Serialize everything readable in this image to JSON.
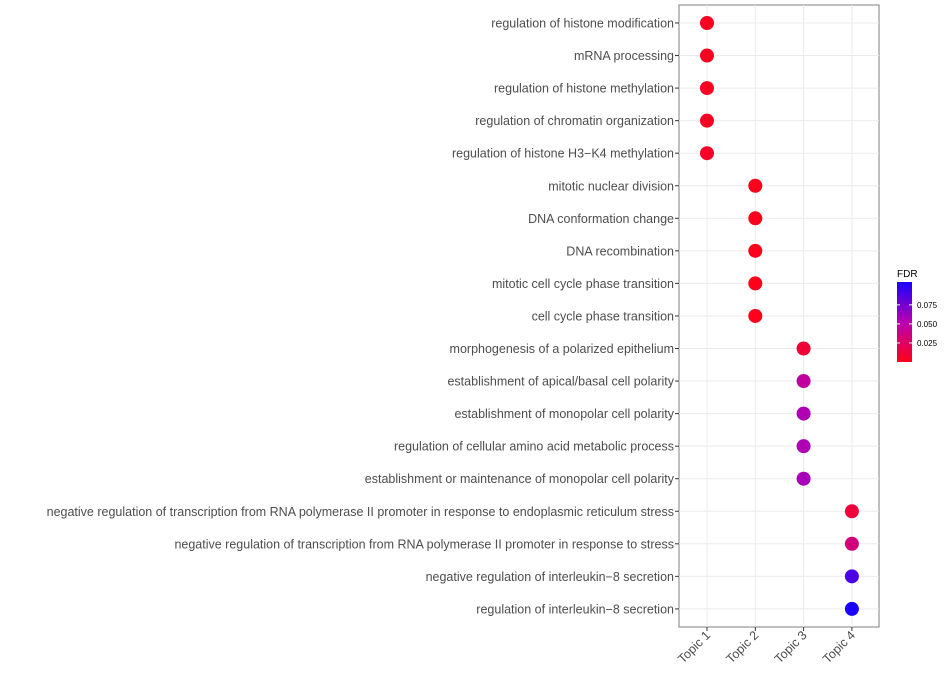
{
  "chart_data": {
    "type": "scatter",
    "categories_x": [
      "Topic 1",
      "Topic 2",
      "Topic 3",
      "Topic 4"
    ],
    "categories_y": [
      "regulation of histone modification",
      "mRNA processing",
      "regulation of histone methylation",
      "regulation of chromatin organization",
      "regulation of histone H3−K4 methylation",
      "mitotic nuclear division",
      "DNA conformation change",
      "DNA recombination",
      "mitotic cell cycle phase transition",
      "cell cycle phase transition",
      "morphogenesis of a polarized epithelium",
      "establishment of apical/basal cell polarity",
      "establishment of monopolar cell polarity",
      "regulation of cellular amino acid metabolic process",
      "establishment or maintenance of monopolar cell polarity",
      "negative regulation of transcription from RNA polymerase II promoter in response to endoplasmic reticulum stress",
      "negative regulation of transcription from RNA polymerase II promoter in response to stress",
      "negative regulation of interleukin−8 secretion",
      "regulation of interleukin−8 secretion"
    ],
    "points": [
      {
        "term": "regulation of histone modification",
        "topic": "Topic 1",
        "fdr": 0.002
      },
      {
        "term": "mRNA processing",
        "topic": "Topic 1",
        "fdr": 0.002
      },
      {
        "term": "regulation of histone methylation",
        "topic": "Topic 1",
        "fdr": 0.003
      },
      {
        "term": "regulation of chromatin organization",
        "topic": "Topic 1",
        "fdr": 0.004
      },
      {
        "term": "regulation of histone H3−K4 methylation",
        "topic": "Topic 1",
        "fdr": 0.006
      },
      {
        "term": "mitotic nuclear division",
        "topic": "Topic 2",
        "fdr": 0.001
      },
      {
        "term": "DNA conformation change",
        "topic": "Topic 2",
        "fdr": 0.001
      },
      {
        "term": "DNA recombination",
        "topic": "Topic 2",
        "fdr": 0.001
      },
      {
        "term": "mitotic cell cycle phase transition",
        "topic": "Topic 2",
        "fdr": 0.001
      },
      {
        "term": "cell cycle phase transition",
        "topic": "Topic 2",
        "fdr": 0.001
      },
      {
        "term": "morphogenesis of a polarized epithelium",
        "topic": "Topic 3",
        "fdr": 0.01
      },
      {
        "term": "establishment of apical/basal cell polarity",
        "topic": "Topic 3",
        "fdr": 0.046
      },
      {
        "term": "establishment of monopolar cell polarity",
        "topic": "Topic 3",
        "fdr": 0.055
      },
      {
        "term": "regulation of cellular amino acid metabolic process",
        "topic": "Topic 3",
        "fdr": 0.055
      },
      {
        "term": "establishment or maintenance of monopolar cell polarity",
        "topic": "Topic 3",
        "fdr": 0.058
      },
      {
        "term": "negative regulation of transcription from RNA polymerase II promoter in response to endoplasmic reticulum stress",
        "topic": "Topic 4",
        "fdr": 0.012
      },
      {
        "term": "negative regulation of transcription from RNA polymerase II promoter in response to stress",
        "topic": "Topic 4",
        "fdr": 0.034
      },
      {
        "term": "negative regulation of interleukin−8 secretion",
        "topic": "Topic 4",
        "fdr": 0.088
      },
      {
        "term": "regulation of interleukin−8 secretion",
        "topic": "Topic 4",
        "fdr": 0.105
      }
    ],
    "legend": {
      "title": "FDR",
      "ticks": [
        0.025,
        0.05,
        0.075
      ],
      "tick_labels": [
        "0.025",
        "0.050",
        "0.075"
      ],
      "range": [
        0.0,
        0.105
      ],
      "color_low": "#ff0019",
      "color_high": "#1a00ff",
      "placement": "right"
    },
    "grid": true,
    "xlabel": "",
    "ylabel": ""
  }
}
